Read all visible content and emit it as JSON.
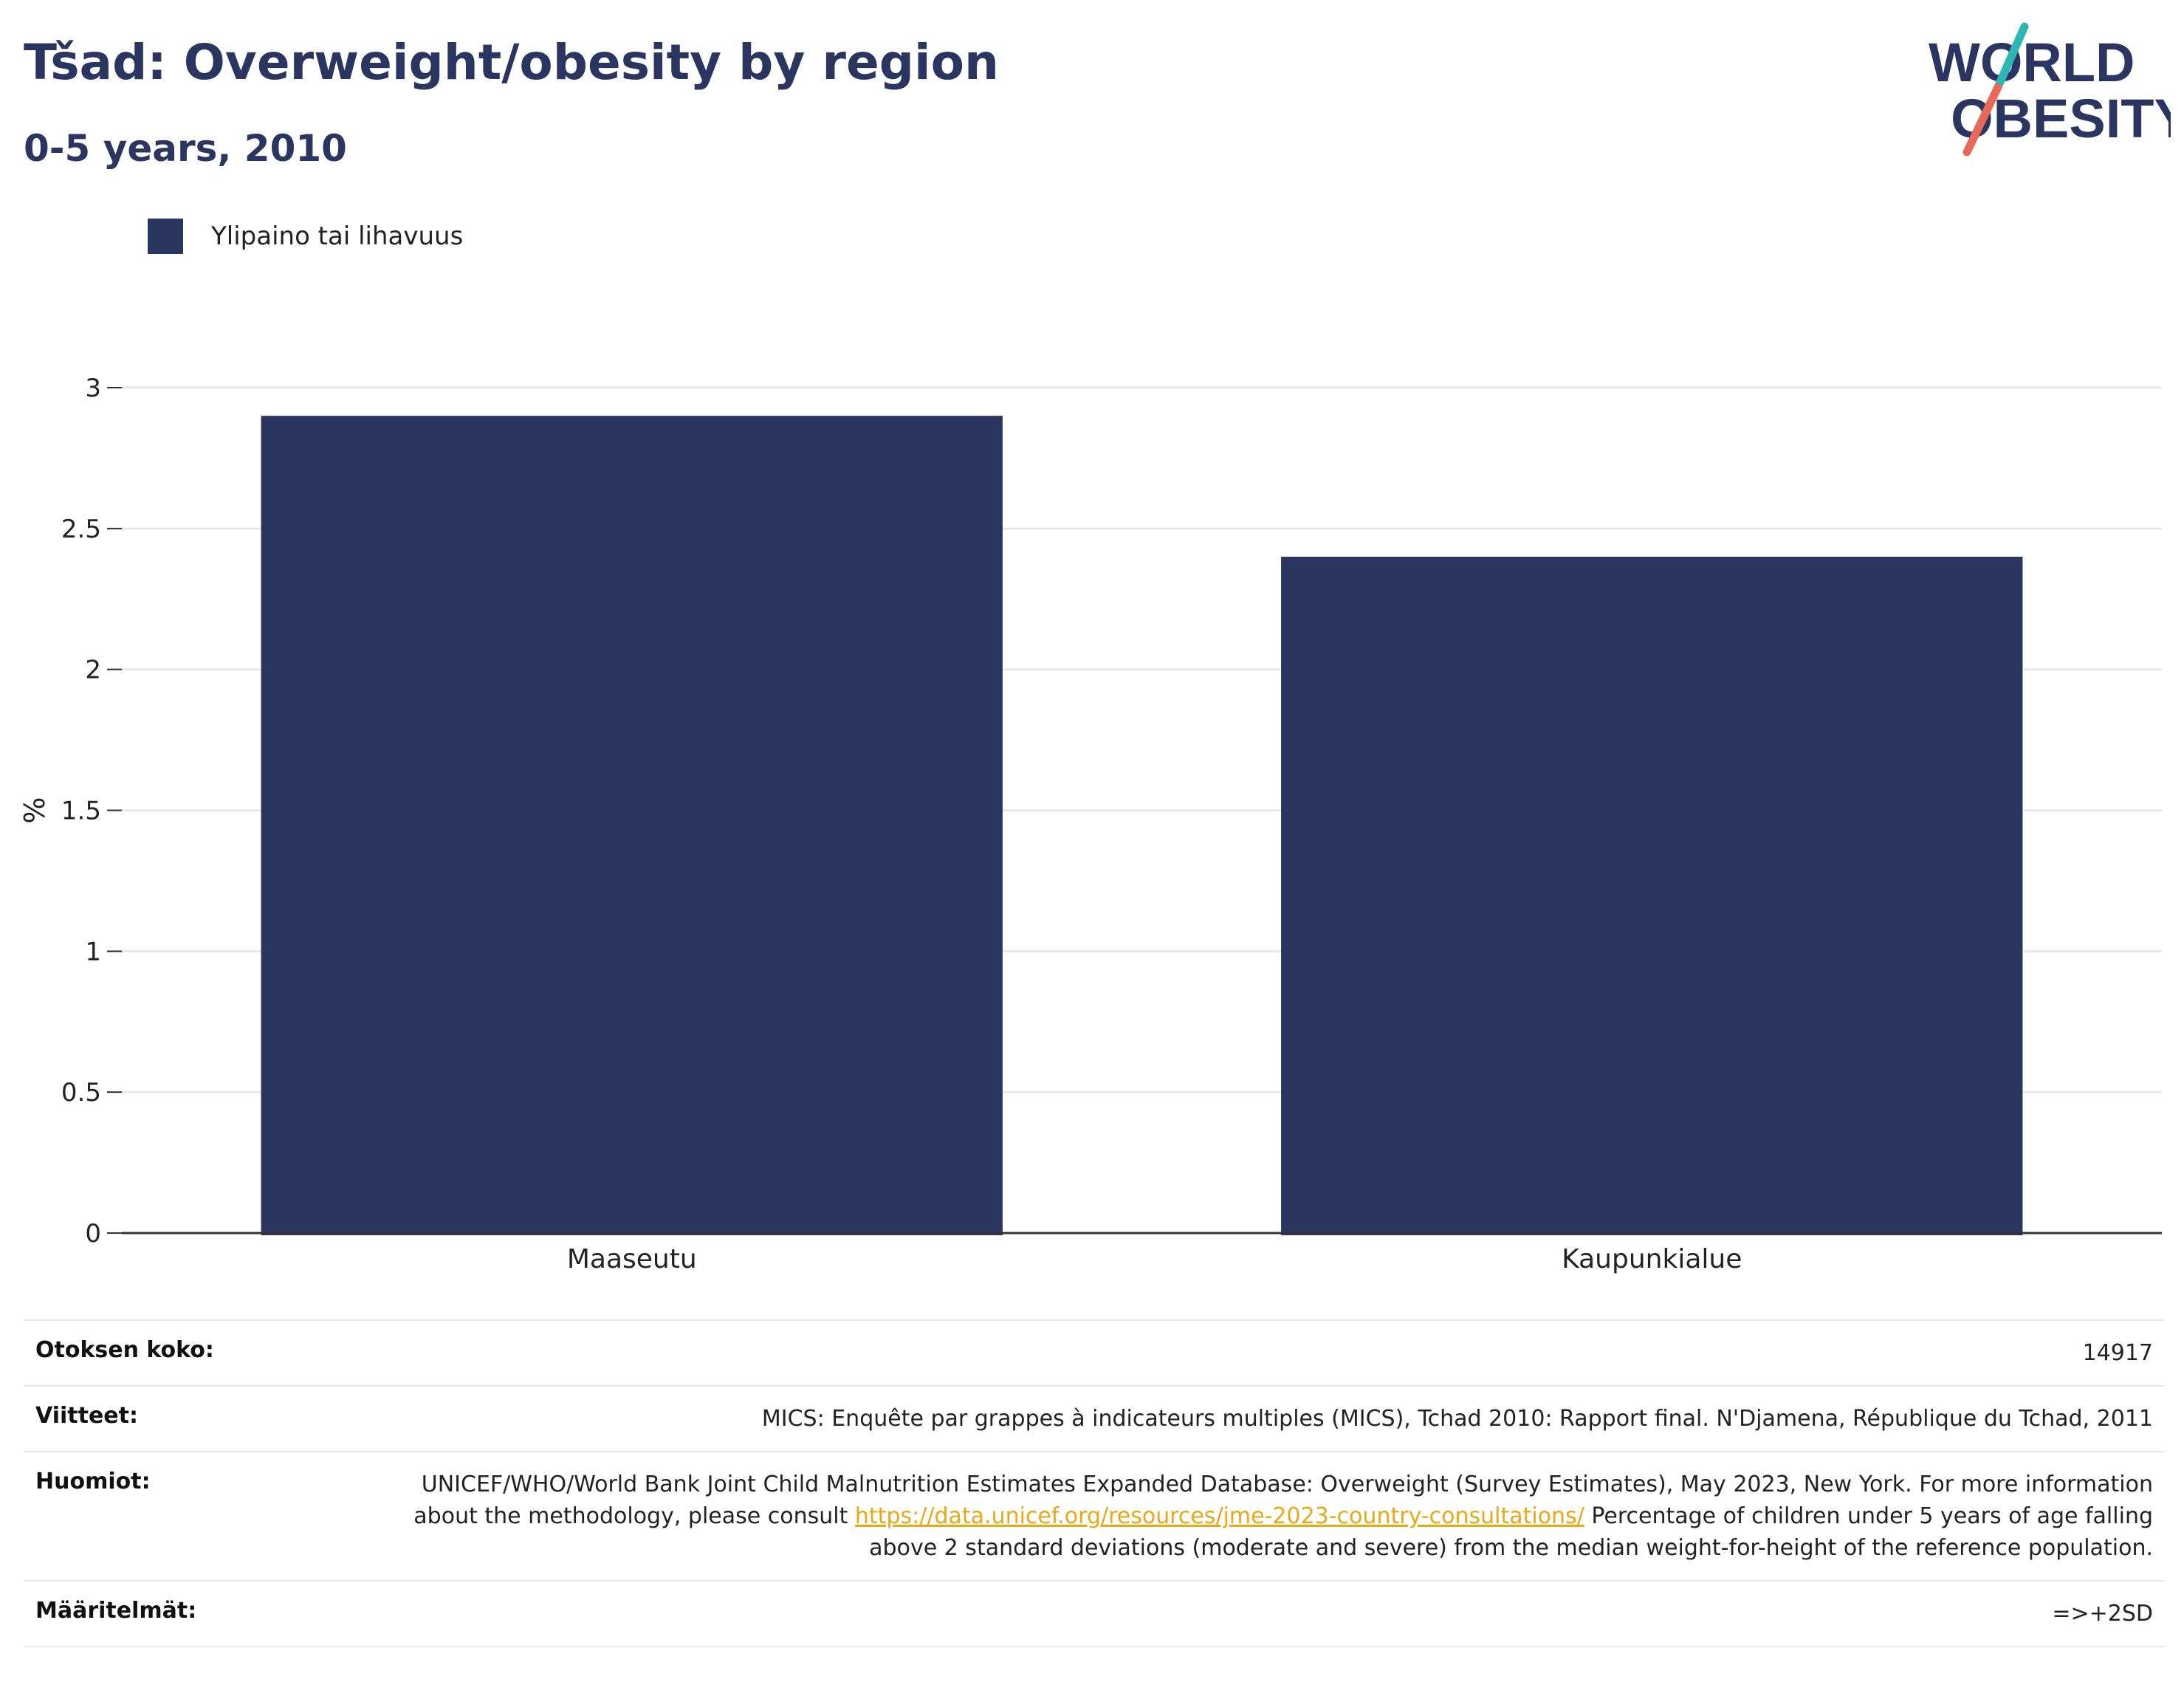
{
  "header": {
    "title": "Tšad: Overweight/obesity by region",
    "subtitle": "0-5 years, 2010"
  },
  "logo": {
    "line1": "WORLD",
    "line2": "OBESITY",
    "colors": {
      "text": "#2a3560",
      "slash_top": "#2bb7b3",
      "slash_bottom": "#e8685a"
    }
  },
  "legend": {
    "label": "Ylipaino tai lihavuus",
    "color": "#2a3560"
  },
  "chart_data": {
    "type": "bar",
    "categories": [
      "Maaseutu",
      "Kaupunkialue"
    ],
    "series": [
      {
        "name": "Ylipaino tai lihavuus",
        "values": [
          2.9,
          2.4
        ],
        "color": "#2a3560"
      }
    ],
    "ylabel": "%",
    "xlabel": "",
    "ylim": [
      0,
      3
    ],
    "yticks": [
      "0",
      "0.5",
      "1",
      "1.5",
      "2",
      "2.5",
      "3"
    ],
    "grid": true,
    "legend_position": "top-left"
  },
  "info": {
    "sample_size_label": "Otoksen koko:",
    "sample_size_value": "14917",
    "references_label": "Viitteet:",
    "references_value": "MICS: Enquête par grappes à indicateurs multiples (MICS), Tchad 2010: Rapport final. N'Djamena, République du Tchad, 2011",
    "notes_label": "Huomiot:",
    "notes_text_before": "UNICEF/WHO/World Bank Joint Child Malnutrition Estimates Expanded Database: Overweight (Survey Estimates), May 2023, New York. For more information about the methodology, please consult ",
    "notes_link": "https://data.unicef.org/resources/jme-2023-country-consultations/",
    "notes_text_after": " Percentage of children under 5 years of age falling above 2 standard deviations (moderate and severe) from the median weight-for-height of the reference population.",
    "definitions_label": "Määritelmät:",
    "definitions_value": "=>+2SD"
  }
}
